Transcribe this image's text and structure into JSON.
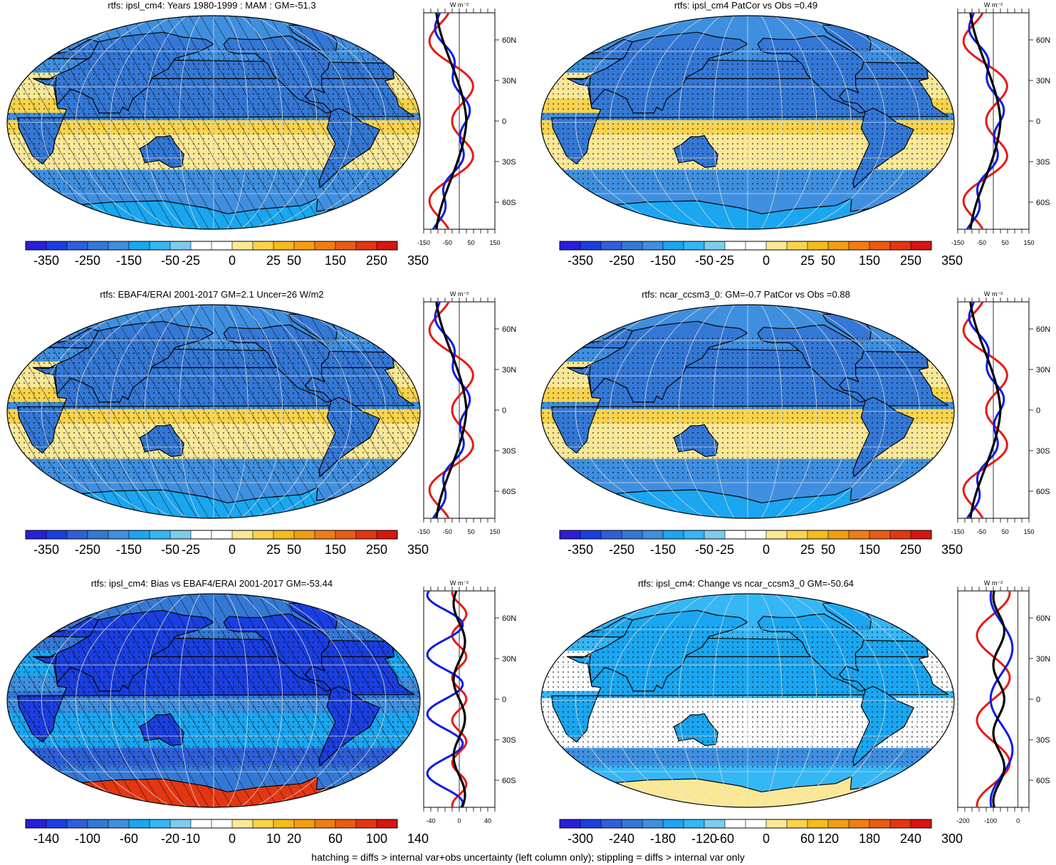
{
  "panels": [
    {
      "id": "p1",
      "title": "rtfs: ipsl_cm4: Years 1980-1999 : MAM : GM=-51.3",
      "palette": "full",
      "hatched": true,
      "colorbar_labels": [
        "-350",
        "-250",
        "-150",
        "-50",
        "-25",
        "0",
        "25",
        "50",
        "150",
        "250",
        "350"
      ],
      "profile_unit": "W m⁻²",
      "profile_lat_labels": [
        "60N",
        "30N",
        "0",
        "30S",
        "60S"
      ],
      "profile_x_labels": [
        "-150",
        "-50",
        "50",
        "150"
      ],
      "profile_xlim": [
        -150,
        150
      ]
    },
    {
      "id": "p2",
      "title": "rtfs: ipsl_cm4 PatCor vs Obs =0.49",
      "palette": "full",
      "hatched": false,
      "colorbar_labels": [
        "-350",
        "-250",
        "-150",
        "-50",
        "-25",
        "0",
        "25",
        "50",
        "150",
        "250",
        "350"
      ],
      "profile_unit": "W m⁻²",
      "profile_lat_labels": [
        "60N",
        "30N",
        "0",
        "30S",
        "60S"
      ],
      "profile_x_labels": [
        "-150",
        "-50",
        "50",
        "150"
      ],
      "profile_xlim": [
        -150,
        150
      ]
    },
    {
      "id": "p3",
      "title": "rtfs: EBAF4/ERAI 2001-2017 GM=2.1 Uncer=26 W/m2",
      "palette": "full",
      "hatched": true,
      "colorbar_labels": [
        "-350",
        "-250",
        "-150",
        "-50",
        "-25",
        "0",
        "25",
        "50",
        "150",
        "250",
        "350"
      ],
      "profile_unit": "W m⁻²",
      "profile_lat_labels": [
        "60N",
        "30N",
        "0",
        "30S",
        "60S"
      ],
      "profile_x_labels": [
        "-150",
        "-50",
        "50",
        "150"
      ],
      "profile_xlim": [
        -150,
        150
      ]
    },
    {
      "id": "p4",
      "title": "rtfs: ncar_ccsm3_0: GM=-0.7 PatCor vs Obs =0.88",
      "palette": "full",
      "hatched": false,
      "colorbar_labels": [
        "-350",
        "-250",
        "-150",
        "-50",
        "-25",
        "0",
        "25",
        "50",
        "150",
        "250",
        "350"
      ],
      "profile_unit": "W m⁻²",
      "profile_lat_labels": [
        "60N",
        "30N",
        "0",
        "30S",
        "60S"
      ],
      "profile_x_labels": [
        "-150",
        "-50",
        "50",
        "150"
      ],
      "profile_xlim": [
        -150,
        150
      ]
    },
    {
      "id": "p5",
      "title": "rtfs: ipsl_cm4: Bias vs EBAF4/ERAI 2001-2017 GM=-53.44",
      "palette": "bias",
      "hatched": true,
      "colorbar_labels": [
        "-140",
        "-100",
        "-60",
        "-20",
        "-10",
        "0",
        "10",
        "20",
        "60",
        "100",
        "140"
      ],
      "profile_unit": "W m⁻²",
      "profile_lat_labels": [
        "60N",
        "30N",
        "0",
        "30S",
        "60S"
      ],
      "profile_x_labels": [
        "-40",
        "0",
        "40"
      ],
      "profile_xlim": [
        -50,
        50
      ]
    },
    {
      "id": "p6",
      "title": "rtfs: ipsl_cm4: Change vs ncar_ccsm3_0 GM=-50.64",
      "palette": "change",
      "hatched": false,
      "colorbar_labels": [
        "-300",
        "-240",
        "-180",
        "-120",
        "-60",
        "0",
        "60",
        "120",
        "180",
        "240",
        "300"
      ],
      "profile_unit": "W m⁻²",
      "profile_lat_labels": [
        "60N",
        "30N",
        "0",
        "30S",
        "60S"
      ],
      "profile_x_labels": [
        "-200",
        "-100",
        "0"
      ],
      "profile_xlim": [
        -220,
        40
      ]
    }
  ],
  "colors": {
    "blues": [
      "#2a1fd9",
      "#1a3fe0",
      "#2f5fd8",
      "#3478d6",
      "#3f8fe0",
      "#1aa6f0",
      "#35b6f5",
      "#7ecbee"
    ],
    "white": "#ffffff",
    "oranges": [
      "#fbe896",
      "#f9d34a",
      "#f6bb1c",
      "#f39e12",
      "#ef7d14",
      "#ea5b14",
      "#e33612",
      "#d81510"
    ],
    "land": "#000000",
    "model_line": "#0a1ce6",
    "obs_line": "#e61a14",
    "ref_line": "#000000"
  },
  "footnote": "hatching = diffs > internal var+obs uncertainty (left column only); stippling = diffs > internal var only"
}
